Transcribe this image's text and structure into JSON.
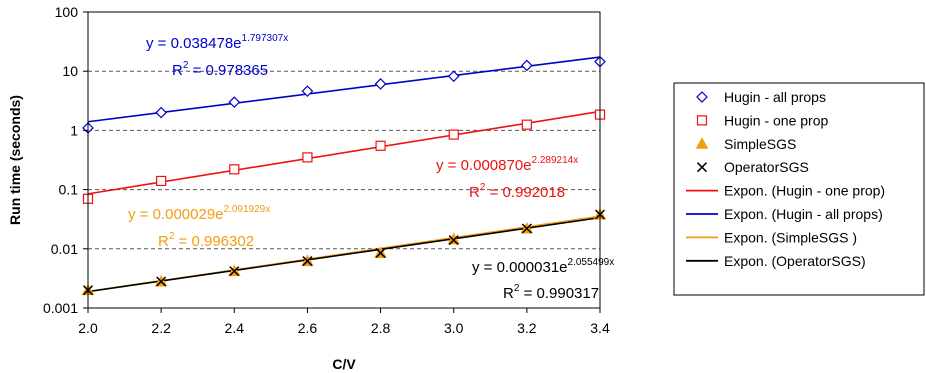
{
  "chart_data": {
    "type": "scatter",
    "title": "",
    "xlabel": "C/V",
    "ylabel": "Run time (seconds)",
    "x_scale": "linear",
    "y_scale": "log",
    "xlim": [
      2.0,
      3.4
    ],
    "ylim": [
      0.001,
      100
    ],
    "x_ticks": [
      "2.0",
      "2.2",
      "2.4",
      "2.6",
      "2.8",
      "3.0",
      "3.2",
      "3.4"
    ],
    "y_ticks": [
      "0.001",
      "0.01",
      "0.1",
      "1",
      "10",
      "100"
    ],
    "grid": "horizontal dashed",
    "legend_position": "right",
    "series": [
      {
        "name": "Hugin - all props",
        "marker": "diamond",
        "color": "#0000cc",
        "x": [
          2.0,
          2.2,
          2.4,
          2.6,
          2.8,
          3.0,
          3.2,
          3.4
        ],
        "y": [
          1.1,
          2.0,
          3.0,
          4.6,
          6.1,
          8.2,
          12.5,
          14.5
        ]
      },
      {
        "name": "Hugin - one prop",
        "marker": "square",
        "color": "#ee1111",
        "x": [
          2.0,
          2.2,
          2.4,
          2.6,
          2.8,
          3.0,
          3.2,
          3.4
        ],
        "y": [
          0.07,
          0.14,
          0.22,
          0.35,
          0.55,
          0.85,
          1.25,
          1.85
        ]
      },
      {
        "name": "SimpleSGS",
        "marker": "triangle",
        "color": "#f39c12",
        "x": [
          2.0,
          2.2,
          2.4,
          2.6,
          2.8,
          3.0,
          3.2,
          3.4
        ],
        "y": [
          0.002,
          0.0028,
          0.0042,
          0.0062,
          0.0085,
          0.0145,
          0.022,
          0.038
        ]
      },
      {
        "name": "OperatorSGS",
        "marker": "x",
        "color": "#000000",
        "x": [
          2.0,
          2.2,
          2.4,
          2.6,
          2.8,
          3.0,
          3.2,
          3.4
        ],
        "y": [
          0.002,
          0.0028,
          0.0042,
          0.0062,
          0.0085,
          0.014,
          0.022,
          0.038
        ]
      }
    ],
    "trendlines": [
      {
        "name": "Expon. (Hugin - one prop)",
        "color": "#ee1111",
        "coef": 0.00087,
        "exp": 2.289214,
        "eq_base": "y = 0.000870e",
        "eq_exp": "2.289214x",
        "r2_label": "R",
        "r2_sup": "2",
        "r2_value": " = 0.992018"
      },
      {
        "name": "Expon. (Hugin - all props)",
        "color": "#0000cc",
        "coef": 0.038478,
        "exp": 1.797307,
        "eq_base": "y = 0.038478e",
        "eq_exp": "1.797307x",
        "r2_label": "R",
        "r2_sup": "2",
        "r2_value": " = 0.978365"
      },
      {
        "name": "Expon. (SimpleSGS )",
        "color": "#f39c12",
        "coef": 2.9e-05,
        "exp": 2.091929,
        "eq_base": "y = 0.000029e",
        "eq_exp": "2.091929x",
        "r2_label": "R",
        "r2_sup": "2",
        "r2_value": " = 0.996302"
      },
      {
        "name": "Expon. (OperatorSGS)",
        "color": "#000000",
        "coef": 3.1e-05,
        "exp": 2.055499,
        "eq_base": "y = 0.000031e",
        "eq_exp": "2.055499x",
        "r2_label": "R",
        "r2_sup": "2",
        "r2_value": " = 0.990317"
      }
    ]
  }
}
